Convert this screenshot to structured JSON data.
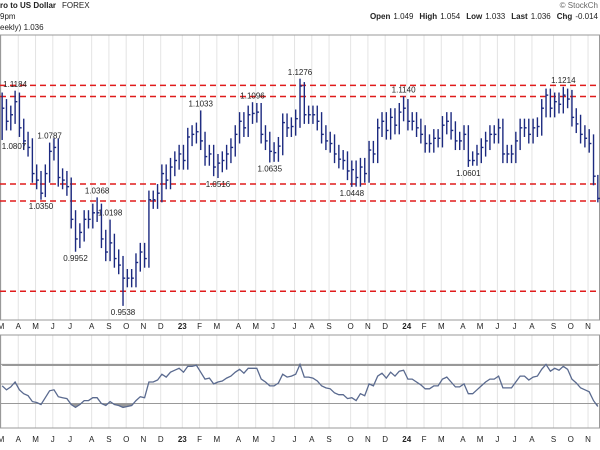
{
  "header": {
    "symbol": "ro to US Dollar",
    "exchange": "FOREX",
    "time": "9pm",
    "period": "eekly) 1.036",
    "credit": "© StockCh",
    "fields": [
      {
        "label": "Open",
        "value": "1.049"
      },
      {
        "label": "High",
        "value": "1.054"
      },
      {
        "label": "Low",
        "value": "1.033"
      },
      {
        "label": "Last",
        "value": "1.036"
      },
      {
        "label": "Chg",
        "value": "-0.014"
      }
    ]
  },
  "chart_data": {
    "type": "hlc",
    "color": "#1c2a80",
    "categories": [
      "M",
      null,
      null,
      null,
      "A",
      null,
      null,
      null,
      "M",
      null,
      null,
      null,
      "J",
      null,
      null,
      null,
      "J",
      null,
      null,
      null,
      null,
      "A",
      null,
      null,
      null,
      "S",
      null,
      null,
      null,
      "O",
      null,
      null,
      null,
      "N",
      null,
      null,
      null,
      "D",
      null,
      null,
      null,
      null,
      "23",
      null,
      null,
      null,
      "F",
      null,
      null,
      null,
      "M",
      null,
      null,
      null,
      null,
      "A",
      null,
      null,
      null,
      "M",
      null,
      null,
      null,
      "J",
      null,
      null,
      null,
      null,
      "J",
      null,
      null,
      null,
      "A",
      null,
      null,
      null,
      "S",
      null,
      null,
      null,
      null,
      "O",
      null,
      null,
      null,
      "N",
      null,
      null,
      null,
      "D",
      null,
      null,
      null,
      null,
      "24",
      null,
      null,
      null,
      "F",
      null,
      null,
      null,
      "M",
      null,
      null,
      null,
      null,
      "A",
      null,
      null,
      null,
      "M",
      null,
      null,
      null,
      "J",
      null,
      null,
      null,
      "J",
      null,
      null,
      null,
      "A",
      null,
      null,
      null,
      null,
      "S",
      null,
      null,
      null,
      "O",
      null,
      null,
      null,
      "N",
      null,
      null
    ],
    "high": [
      1.117,
      1.112,
      1.107,
      1.1184,
      1.117,
      1.097,
      1.087,
      1.082,
      1.062,
      1.057,
      1.062,
      1.0787,
      1.082,
      1.082,
      1.059,
      1.057,
      1.052,
      1.027,
      1.017,
      1.027,
      1.027,
      1.032,
      1.0368,
      1.032,
      1.012,
      1.0198,
      1.009,
      0.997,
      0.992,
      0.982,
      0.982,
      0.994,
      1.002,
      1.002,
      1.042,
      1.042,
      1.047,
      1.062,
      1.062,
      1.067,
      1.072,
      1.077,
      1.077,
      1.09,
      1.092,
      1.094,
      1.1033,
      1.087,
      1.077,
      1.077,
      1.07,
      1.072,
      1.077,
      1.082,
      1.092,
      1.102,
      1.102,
      1.107,
      1.1096,
      1.109,
      1.109,
      1.092,
      1.087,
      1.079,
      1.083,
      1.101,
      1.101,
      1.098,
      1.104,
      1.1276,
      1.125,
      1.107,
      1.107,
      1.107,
      1.102,
      1.092,
      1.087,
      1.085,
      1.077,
      1.073,
      1.072,
      1.065,
      1.065,
      1.067,
      1.067,
      1.08,
      1.08,
      1.097,
      1.102,
      1.102,
      1.105,
      1.105,
      1.109,
      1.114,
      1.112,
      1.102,
      1.102,
      1.097,
      1.092,
      1.085,
      1.089,
      1.089,
      1.099,
      1.102,
      1.102,
      1.095,
      1.087,
      1.092,
      1.092,
      1.072,
      1.077,
      1.082,
      1.087,
      1.092,
      1.092,
      1.097,
      1.097,
      1.077,
      1.077,
      1.087,
      1.097,
      1.097,
      1.097,
      1.097,
      1.098,
      1.112,
      1.12,
      1.12,
      1.117,
      1.117,
      1.1214,
      1.12,
      1.119,
      1.105,
      1.1,
      1.092,
      1.089,
      1.085,
      1.054
    ],
    "low": [
      1.0807,
      1.088,
      1.088,
      1.093,
      1.083,
      1.073,
      1.068,
      1.048,
      1.043,
      1.035,
      1.037,
      1.048,
      1.065,
      1.045,
      1.043,
      1.038,
      1.013,
      0.9952,
      0.998,
      1.003,
      1.013,
      1.013,
      1.018,
      0.998,
      0.988,
      0.988,
      0.983,
      0.978,
      0.9538,
      0.968,
      0.968,
      0.968,
      0.98,
      0.983,
      0.983,
      1.028,
      1.028,
      1.033,
      1.043,
      1.043,
      1.053,
      1.058,
      1.058,
      1.058,
      1.076,
      1.078,
      1.073,
      1.061,
      1.061,
      1.053,
      1.0516,
      1.056,
      1.058,
      1.063,
      1.068,
      1.078,
      1.083,
      1.083,
      1.093,
      1.094,
      1.078,
      1.073,
      1.0635,
      1.064,
      1.064,
      1.069,
      1.083,
      1.083,
      1.084,
      1.09,
      1.093,
      1.093,
      1.093,
      1.088,
      1.078,
      1.073,
      1.071,
      1.063,
      1.059,
      1.058,
      1.05,
      1.0448,
      1.045,
      1.045,
      1.048,
      1.048,
      1.063,
      1.063,
      1.083,
      1.081,
      1.081,
      1.085,
      1.085,
      1.095,
      1.088,
      1.088,
      1.083,
      1.078,
      1.071,
      1.071,
      1.071,
      1.075,
      1.075,
      1.085,
      1.081,
      1.073,
      1.073,
      1.073,
      1.0601,
      1.061,
      1.061,
      1.063,
      1.068,
      1.073,
      1.078,
      1.078,
      1.063,
      1.063,
      1.063,
      1.063,
      1.073,
      1.083,
      1.078,
      1.078,
      1.083,
      1.084,
      1.098,
      1.098,
      1.098,
      1.101,
      1.101,
      1.105,
      1.091,
      1.086,
      1.078,
      1.075,
      1.071,
      1.046,
      1.033
    ],
    "close": [
      1.105,
      1.095,
      1.1,
      1.11,
      1.09,
      1.08,
      1.075,
      1.055,
      1.05,
      1.04,
      1.055,
      1.072,
      1.075,
      1.052,
      1.05,
      1.045,
      1.02,
      1.005,
      1.01,
      1.02,
      1.02,
      1.025,
      1.025,
      1.005,
      0.995,
      1.002,
      0.99,
      0.985,
      0.975,
      0.975,
      0.975,
      0.987,
      0.995,
      0.99,
      1.035,
      1.035,
      1.04,
      1.055,
      1.05,
      1.06,
      1.065,
      1.07,
      1.065,
      1.083,
      1.085,
      1.087,
      1.08,
      1.068,
      1.07,
      1.06,
      1.063,
      1.065,
      1.07,
      1.075,
      1.085,
      1.095,
      1.09,
      1.1,
      1.101,
      1.102,
      1.085,
      1.08,
      1.072,
      1.071,
      1.076,
      1.094,
      1.09,
      1.091,
      1.097,
      1.122,
      1.1,
      1.1,
      1.1,
      1.095,
      1.085,
      1.08,
      1.078,
      1.07,
      1.066,
      1.065,
      1.057,
      1.058,
      1.052,
      1.06,
      1.055,
      1.073,
      1.07,
      1.09,
      1.095,
      1.088,
      1.098,
      1.092,
      1.102,
      1.105,
      1.095,
      1.095,
      1.09,
      1.085,
      1.078,
      1.078,
      1.082,
      1.082,
      1.092,
      1.095,
      1.088,
      1.08,
      1.08,
      1.085,
      1.065,
      1.065,
      1.07,
      1.075,
      1.08,
      1.085,
      1.085,
      1.09,
      1.07,
      1.07,
      1.07,
      1.08,
      1.09,
      1.09,
      1.085,
      1.09,
      1.091,
      1.105,
      1.115,
      1.105,
      1.11,
      1.108,
      1.115,
      1.112,
      1.098,
      1.093,
      1.085,
      1.082,
      1.078,
      1.053,
      1.036
    ],
    "ylim": [
      0.943,
      1.161
    ],
    "annotations": [
      1.1184,
      1.0807,
      1.0787,
      {
        "value": 1.035,
        "label": "1.0350"
      },
      1.0368,
      1.0198,
      0.9952,
      0.9538,
      1.1033,
      1.0516,
      1.1096,
      1.0635,
      1.1276,
      1.0448,
      {
        "value": 1.114,
        "label": "1.1140"
      },
      1.0601,
      1.1214
    ],
    "levels": [
      1.1225,
      1.114,
      1.047,
      1.034,
      0.965
    ],
    "level_color": "#e01b1b",
    "indicator": {
      "color": "#5a6a8f",
      "ylim": [
        5,
        100
      ],
      "levels": [
        70,
        50,
        30
      ],
      "values": [
        48,
        44,
        47,
        52,
        44,
        40,
        38,
        32,
        31,
        29,
        36,
        43,
        44,
        37,
        36,
        35,
        29,
        26,
        29,
        33,
        33,
        36,
        36,
        30,
        28,
        32,
        29,
        28,
        26,
        27,
        28,
        33,
        37,
        36,
        52,
        52,
        54,
        60,
        57,
        62,
        64,
        66,
        62,
        68,
        68,
        69,
        62,
        55,
        56,
        50,
        52,
        53,
        56,
        58,
        62,
        65,
        61,
        66,
        66,
        66,
        55,
        52,
        48,
        48,
        51,
        60,
        57,
        58,
        60,
        70,
        57,
        57,
        56,
        53,
        48,
        46,
        45,
        41,
        39,
        39,
        35,
        36,
        33,
        40,
        38,
        50,
        48,
        58,
        61,
        56,
        62,
        58,
        63,
        64,
        55,
        55,
        52,
        49,
        45,
        45,
        48,
        48,
        55,
        57,
        52,
        47,
        47,
        50,
        40,
        40,
        44,
        48,
        52,
        55,
        55,
        58,
        46,
        46,
        46,
        52,
        58,
        58,
        54,
        57,
        58,
        65,
        70,
        63,
        66,
        64,
        68,
        65,
        55,
        51,
        46,
        44,
        42,
        33,
        27
      ]
    }
  }
}
